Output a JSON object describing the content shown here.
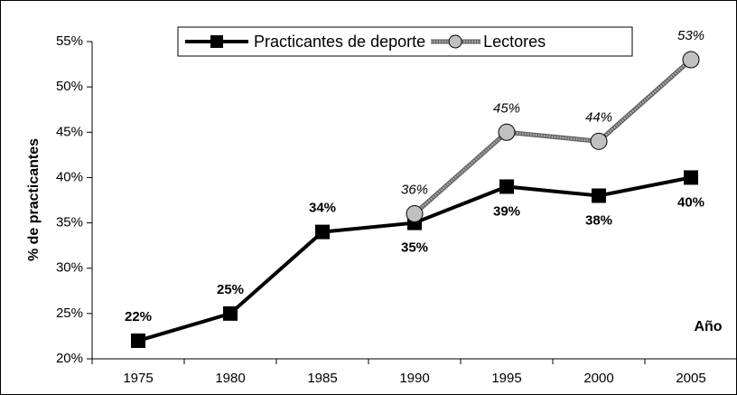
{
  "chart_data": {
    "type": "line",
    "categories": [
      "1975",
      "1980",
      "1985",
      "1990",
      "1995",
      "2000",
      "2005"
    ],
    "series": [
      {
        "name": "Practicantes de deporte",
        "color": "#000000",
        "marker": "square",
        "values": [
          22,
          25,
          34,
          35,
          39,
          38,
          40
        ],
        "value_labels": [
          "22%",
          "25%",
          "34%",
          "35%",
          "39%",
          "38%",
          "40%"
        ]
      },
      {
        "name": "Lectores",
        "color": "#a6a6a6",
        "marker": "circle",
        "values": [
          null,
          null,
          null,
          36,
          45,
          44,
          53
        ],
        "value_labels": [
          null,
          null,
          null,
          "36%",
          "45%",
          "44%",
          "53%"
        ]
      }
    ],
    "ylabel": "% de practicantes",
    "annotation": "Año",
    "ylim": [
      20,
      55
    ],
    "yticks": [
      {
        "value": 20,
        "label": "20%"
      },
      {
        "value": 25,
        "label": "25%"
      },
      {
        "value": 30,
        "label": "30%"
      },
      {
        "value": 35,
        "label": "35%"
      },
      {
        "value": 40,
        "label": "40%"
      },
      {
        "value": 45,
        "label": "45%"
      },
      {
        "value": 50,
        "label": "50%"
      },
      {
        "value": 55,
        "label": "55%"
      }
    ],
    "legend": "top"
  }
}
